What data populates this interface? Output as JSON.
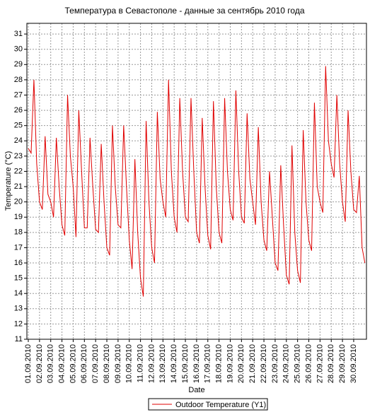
{
  "chart_data": {
    "type": "line",
    "title": "Температура в Севастополе - данные за сентябрь 2010 года",
    "x_label": "Date",
    "y_label": "Temperature (°C)",
    "categories": [
      "01.09.2010",
      null,
      null,
      null,
      "02.09.2010",
      null,
      null,
      null,
      "03.09.2010",
      null,
      null,
      null,
      "04.09.2010",
      null,
      null,
      null,
      "05.09.2010",
      null,
      null,
      null,
      "06.09.2010",
      null,
      null,
      null,
      "07.09.2010",
      null,
      null,
      null,
      "08.09.2010",
      null,
      null,
      null,
      "09.09.2010",
      null,
      null,
      null,
      "10.09.2010",
      null,
      null,
      null,
      "11.09.2010",
      null,
      null,
      null,
      "12.09.2010",
      null,
      null,
      null,
      "13.09.2010",
      null,
      null,
      null,
      "14.09.2010",
      null,
      null,
      null,
      "15.09.2010",
      null,
      null,
      null,
      "16.09.2010",
      null,
      null,
      null,
      "17.09.2010",
      null,
      null,
      null,
      "18.09.2010",
      null,
      null,
      null,
      "19.09.2010",
      null,
      null,
      null,
      "20.09.2010",
      null,
      null,
      null,
      "21.09.2010",
      null,
      null,
      null,
      "22.09.2010",
      null,
      null,
      null,
      "23.09.2010",
      null,
      null,
      null,
      "24.09.2010",
      null,
      null,
      null,
      "25.09.2010",
      null,
      null,
      null,
      "26.09.2010",
      null,
      null,
      null,
      "27.09.2010",
      null,
      null,
      null,
      "28.09.2010",
      null,
      null,
      null,
      "29.09.2010",
      null,
      null,
      null,
      "30.09.2010",
      null,
      null,
      null,
      null
    ],
    "series": [
      {
        "name": "Outdoor Temperature (Y1)",
        "color": "#e00000",
        "values": [
          23.5,
          23.2,
          28.0,
          22.5,
          20.0,
          19.5,
          24.3,
          20.5,
          20.0,
          19.0,
          24.2,
          21.0,
          18.5,
          17.8,
          27.0,
          23.0,
          21.0,
          17.7,
          26.0,
          22.0,
          18.3,
          18.3,
          24.2,
          21.0,
          18.2,
          18.0,
          23.8,
          20.0,
          17.0,
          16.5,
          25.0,
          21.0,
          18.5,
          18.3,
          25.0,
          21.0,
          17.5,
          15.6,
          22.8,
          18.0,
          15.0,
          13.8,
          25.3,
          20.0,
          17.0,
          16.0,
          25.9,
          21.5,
          20.0,
          19.0,
          28.0,
          22.0,
          19.0,
          18.0,
          26.8,
          22.0,
          19.0,
          18.7,
          26.8,
          22.0,
          18.0,
          17.3,
          25.5,
          21.0,
          17.8,
          16.9,
          26.6,
          21.0,
          18.0,
          17.3,
          26.8,
          22.0,
          19.5,
          18.8,
          27.3,
          22.0,
          19.0,
          18.6,
          25.8,
          21.5,
          20.0,
          18.5,
          24.9,
          20.0,
          17.5,
          16.8,
          22.0,
          19.0,
          16.0,
          15.5,
          22.4,
          18.5,
          15.2,
          14.6,
          23.7,
          18.0,
          15.5,
          14.7,
          24.7,
          20.0,
          17.5,
          16.8,
          26.5,
          21.0,
          20.0,
          19.3,
          28.9,
          24.0,
          22.5,
          21.6,
          27.0,
          22.5,
          20.0,
          18.7,
          26.0,
          22.0,
          19.5,
          19.3,
          21.7,
          17.0,
          16.0
        ]
      }
    ],
    "ylim": [
      11,
      31.7
    ],
    "yticks": [
      11,
      12,
      13,
      14,
      15,
      16,
      17,
      18,
      19,
      20,
      21,
      22,
      23,
      24,
      25,
      26,
      27,
      28,
      29,
      30,
      31
    ],
    "grid": true
  }
}
